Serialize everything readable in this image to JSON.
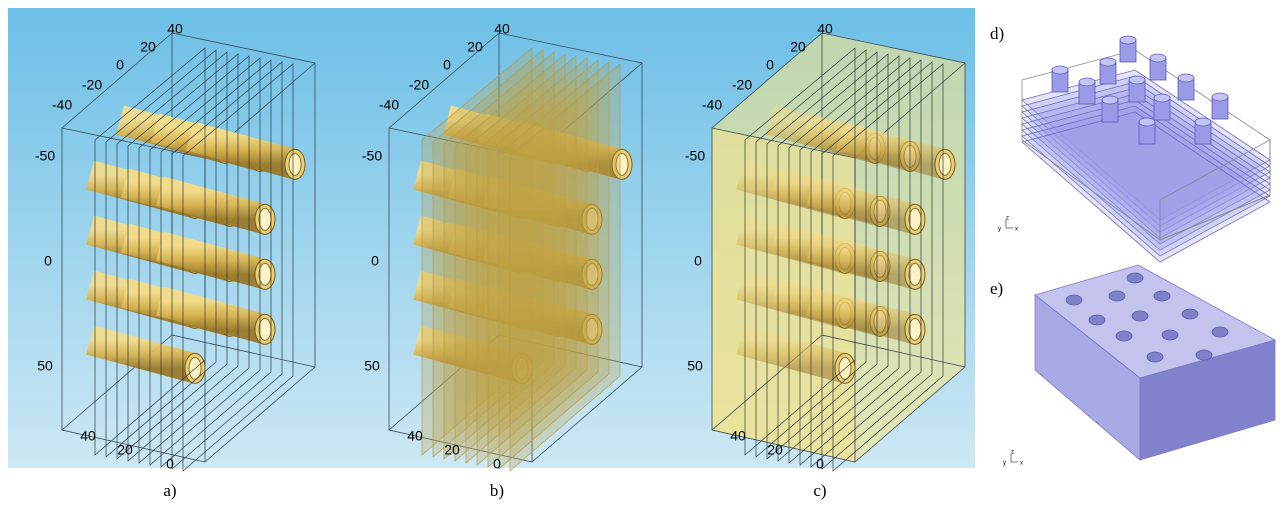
{
  "panels": [
    {
      "label": "a)",
      "top_ticks": [
        "40",
        "20",
        "0",
        "-20",
        "-40"
      ],
      "left_ticks": [
        "-50",
        "0",
        "50"
      ],
      "bottom_ticks": [
        "40",
        "20",
        "0"
      ]
    },
    {
      "label": "b)",
      "top_ticks": [
        "40",
        "20",
        "0",
        "-20",
        "-40"
      ],
      "left_ticks": [
        "-50",
        "0",
        "50"
      ],
      "bottom_ticks": [
        "40",
        "20",
        "0"
      ]
    },
    {
      "label": "c)",
      "top_ticks": [
        "40",
        "20",
        "0",
        "-20",
        "-40"
      ],
      "left_ticks": [
        "-50",
        "0",
        "50"
      ],
      "bottom_ticks": [
        "40",
        "20",
        "0"
      ]
    }
  ],
  "insets": [
    {
      "label": "d)",
      "triad": [
        "y",
        "z",
        "x"
      ]
    },
    {
      "label": "e)",
      "triad": [
        "y",
        "z",
        "x"
      ]
    }
  ]
}
